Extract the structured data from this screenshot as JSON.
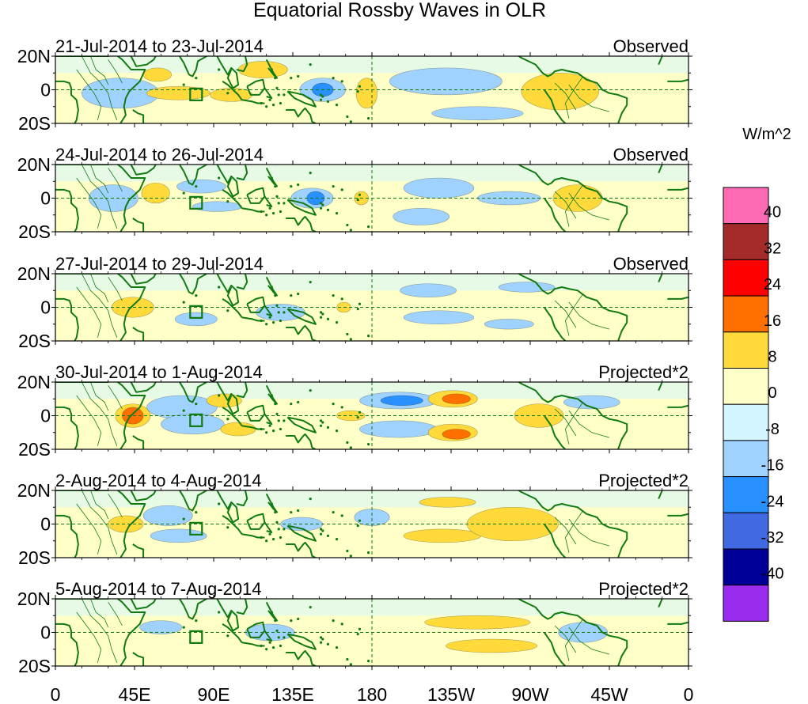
{
  "title": "Equatorial Rossby Waves in OLR",
  "colorbar": {
    "unit_label": "W/m^2",
    "tick_labels": [
      "40",
      "32",
      "24",
      "16",
      "8",
      "0",
      "-8",
      "-16",
      "-24",
      "-32",
      "-40"
    ],
    "colors": [
      "#ff6ab4",
      "#a52a2a",
      "#ff0000",
      "#ff7000",
      "#ffda3a",
      "#ffffc8",
      "#d2f5ff",
      "#a0d2ff",
      "#2890ff",
      "#4169e1",
      "#000096",
      "#9a2cf0"
    ]
  },
  "y_tick_labels": [
    "20N",
    "0",
    "20S"
  ],
  "x_tick_labels": [
    "0",
    "45E",
    "90E",
    "135E",
    "180",
    "135W",
    "90W",
    "45W",
    "0"
  ],
  "panels": [
    {
      "date_range": "21-Jul-2014 to 23-Jul-2014",
      "type": "Observed"
    },
    {
      "date_range": "24-Jul-2014 to 26-Jul-2014",
      "type": "Observed"
    },
    {
      "date_range": "27-Jul-2014 to 29-Jul-2014",
      "type": "Observed"
    },
    {
      "date_range": "30-Jul-2014 to 1-Aug-2014",
      "type": "Projected*2"
    },
    {
      "date_range": "2-Aug-2014 to 4-Aug-2014",
      "type": "Projected*2"
    },
    {
      "date_range": "5-Aug-2014 to 7-Aug-2014",
      "type": "Projected*2"
    }
  ],
  "map": {
    "lon_range": [
      0,
      360
    ],
    "lat_range": [
      -20,
      20
    ],
    "dashed_reference_longitude": 180,
    "dashed_reference_latitude": 0,
    "highlight_box_center": [
      80,
      -3
    ],
    "anomalies": [
      [
        {
          "lon": 37,
          "lat": -2,
          "rlon": 22,
          "rlat": 9,
          "level": -8
        },
        {
          "lon": 58,
          "lat": 9,
          "rlon": 8,
          "rlat": 4,
          "level": 8
        },
        {
          "lon": 70,
          "lat": -2,
          "rlon": 18,
          "rlat": 4,
          "level": 8
        },
        {
          "lon": 100,
          "lat": -3,
          "rlon": 12,
          "rlat": 4,
          "level": 8
        },
        {
          "lon": 118,
          "lat": 12,
          "rlon": 14,
          "rlat": 5,
          "level": 8
        },
        {
          "lon": 152,
          "lat": 0,
          "rlon": 13,
          "rlat": 7,
          "level": -16
        },
        {
          "lon": 152,
          "lat": 0,
          "rlon": 6,
          "rlat": 4,
          "level": -24
        },
        {
          "lon": 177,
          "lat": -2,
          "rlon": 6,
          "rlat": 9,
          "level": 8
        },
        {
          "lon": 222,
          "lat": 5,
          "rlon": 32,
          "rlat": 8,
          "level": -8
        },
        {
          "lon": 287,
          "lat": -1,
          "rlon": 22,
          "rlat": 11,
          "level": 8
        },
        {
          "lon": 240,
          "lat": -14,
          "rlon": 26,
          "rlat": 4,
          "level": -8
        }
      ],
      [
        {
          "lon": 33,
          "lat": 0,
          "rlon": 14,
          "rlat": 8,
          "level": -8
        },
        {
          "lon": 57,
          "lat": 3,
          "rlon": 8,
          "rlat": 6,
          "level": 8
        },
        {
          "lon": 92,
          "lat": -5,
          "rlon": 14,
          "rlat": 3,
          "level": -8
        },
        {
          "lon": 83,
          "lat": 7,
          "rlon": 14,
          "rlat": 4,
          "level": -8
        },
        {
          "lon": 146,
          "lat": 0,
          "rlon": 12,
          "rlat": 6,
          "level": -8
        },
        {
          "lon": 148,
          "lat": 0,
          "rlon": 5,
          "rlat": 4,
          "level": -24
        },
        {
          "lon": 174,
          "lat": 0,
          "rlon": 4,
          "rlat": 4,
          "level": 8
        },
        {
          "lon": 218,
          "lat": 6,
          "rlon": 20,
          "rlat": 6,
          "level": -8
        },
        {
          "lon": 208,
          "lat": -11,
          "rlon": 16,
          "rlat": 5,
          "level": -8
        },
        {
          "lon": 258,
          "lat": 0,
          "rlon": 18,
          "rlat": 4,
          "level": -8
        },
        {
          "lon": 297,
          "lat": 0,
          "rlon": 14,
          "rlat": 8,
          "level": 8
        }
      ],
      [
        {
          "lon": 44,
          "lat": 0,
          "rlon": 12,
          "rlat": 6,
          "level": 8
        },
        {
          "lon": 80,
          "lat": -7,
          "rlon": 12,
          "rlat": 4,
          "level": -8
        },
        {
          "lon": 128,
          "lat": -3,
          "rlon": 14,
          "rlat": 5,
          "level": -8
        },
        {
          "lon": 164,
          "lat": 0,
          "rlon": 4,
          "rlat": 3,
          "level": 8
        },
        {
          "lon": 212,
          "lat": 10,
          "rlon": 16,
          "rlat": 4,
          "level": -8
        },
        {
          "lon": 218,
          "lat": -6,
          "rlon": 20,
          "rlat": 4,
          "level": -8
        },
        {
          "lon": 268,
          "lat": 12,
          "rlon": 16,
          "rlat": 3,
          "level": -8
        },
        {
          "lon": 258,
          "lat": -10,
          "rlon": 14,
          "rlat": 3,
          "level": -8
        }
      ],
      [
        {
          "lon": 44,
          "lat": 0,
          "rlon": 10,
          "rlat": 7,
          "level": 8
        },
        {
          "lon": 44,
          "lat": 0,
          "rlon": 6,
          "rlat": 5,
          "level": 16
        },
        {
          "lon": 72,
          "lat": 5,
          "rlon": 20,
          "rlat": 7,
          "level": -8
        },
        {
          "lon": 78,
          "lat": -5,
          "rlon": 18,
          "rlat": 6,
          "level": -8
        },
        {
          "lon": 96,
          "lat": 9,
          "rlon": 10,
          "rlat": 4,
          "level": 8
        },
        {
          "lon": 104,
          "lat": -8,
          "rlon": 10,
          "rlat": 4,
          "level": 8
        },
        {
          "lon": 168,
          "lat": 0,
          "rlon": 8,
          "rlat": 3,
          "level": 8
        },
        {
          "lon": 195,
          "lat": 9,
          "rlon": 22,
          "rlat": 5,
          "level": -8
        },
        {
          "lon": 197,
          "lat": 9,
          "rlon": 12,
          "rlat": 3,
          "level": -24
        },
        {
          "lon": 195,
          "lat": -8,
          "rlon": 22,
          "rlat": 5,
          "level": -8
        },
        {
          "lon": 226,
          "lat": 10,
          "rlon": 14,
          "rlat": 5,
          "level": 8
        },
        {
          "lon": 228,
          "lat": 10,
          "rlon": 8,
          "rlat": 3,
          "level": 16
        },
        {
          "lon": 226,
          "lat": -10,
          "rlon": 14,
          "rlat": 5,
          "level": 8
        },
        {
          "lon": 228,
          "lat": -11,
          "rlon": 8,
          "rlat": 3,
          "level": 16
        },
        {
          "lon": 275,
          "lat": 0,
          "rlon": 14,
          "rlat": 7,
          "level": 8
        },
        {
          "lon": 305,
          "lat": 8,
          "rlon": 16,
          "rlat": 4,
          "level": -8
        }
      ],
      [
        {
          "lon": 40,
          "lat": 0,
          "rlon": 10,
          "rlat": 5,
          "level": 8
        },
        {
          "lon": 64,
          "lat": 5,
          "rlon": 14,
          "rlat": 6,
          "level": -8
        },
        {
          "lon": 70,
          "lat": -7,
          "rlon": 16,
          "rlat": 4,
          "level": -8
        },
        {
          "lon": 140,
          "lat": 0,
          "rlon": 12,
          "rlat": 4,
          "level": -8
        },
        {
          "lon": 223,
          "lat": 13,
          "rlon": 16,
          "rlat": 3,
          "level": 8
        },
        {
          "lon": 220,
          "lat": -7,
          "rlon": 22,
          "rlat": 4,
          "level": 8
        },
        {
          "lon": 180,
          "lat": 4,
          "rlon": 10,
          "rlat": 5,
          "level": -8
        },
        {
          "lon": 260,
          "lat": 0,
          "rlon": 26,
          "rlat": 10,
          "level": 8
        }
      ],
      [
        {
          "lon": 60,
          "lat": 3,
          "rlon": 12,
          "rlat": 4,
          "level": -8
        },
        {
          "lon": 122,
          "lat": 0,
          "rlon": 14,
          "rlat": 5,
          "level": -8
        },
        {
          "lon": 240,
          "lat": 6,
          "rlon": 30,
          "rlat": 4,
          "level": 8
        },
        {
          "lon": 248,
          "lat": -8,
          "rlon": 26,
          "rlat": 4,
          "level": 8
        },
        {
          "lon": 300,
          "lat": 0,
          "rlon": 14,
          "rlat": 6,
          "level": -8
        }
      ]
    ]
  }
}
